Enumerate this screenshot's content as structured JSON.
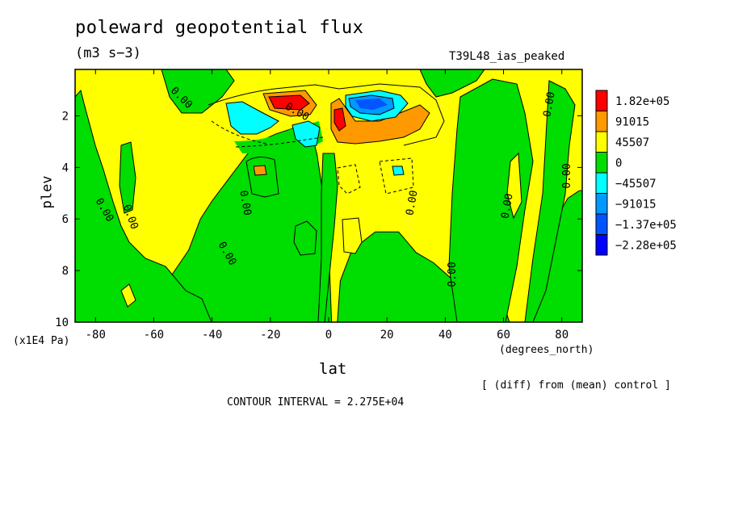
{
  "chart_data": {
    "type": "heatmap",
    "title": "poleward geopotential flux",
    "units": "(m3 s−3)",
    "run_label": "T39L48_ias_peaked",
    "xlabel": "lat",
    "x_units": "(degrees_north)",
    "ylabel": "plev",
    "y_units": "(x1E4 Pa)",
    "xlim": [
      -87,
      87
    ],
    "ylim": [
      10,
      0.2
    ],
    "x_ticks": [
      "-80",
      "-60",
      "-40",
      "-20",
      "0",
      "20",
      "40",
      "60",
      "80"
    ],
    "x_tick_values": [
      -80,
      -60,
      -40,
      -20,
      0,
      20,
      40,
      60,
      80
    ],
    "y_ticks": [
      "2",
      "4",
      "6",
      "8",
      "10"
    ],
    "y_tick_values": [
      2,
      4,
      6,
      8,
      10
    ],
    "contour_label": "0.00",
    "legend": [
      {
        "label": "1.82e+05",
        "color": "#ff0000"
      },
      {
        "label": "91015",
        "color": "#ff9900"
      },
      {
        "label": "45507",
        "color": "#ffff00"
      },
      {
        "label": "0",
        "color": "#00dd00"
      },
      {
        "label": "−45507",
        "color": "#00ffff"
      },
      {
        "label": "−91015",
        "color": "#0099ff"
      },
      {
        "label": "−1.37e+05",
        "color": "#0055ff"
      },
      {
        "label": "−2.28e+05",
        "color": "#0000ff"
      }
    ],
    "note": "[ (diff) from (mean) control ]",
    "contour_interval": "CONTOUR INTERVAL = 2.275E+04",
    "regions": [
      {
        "level": "0",
        "color": "#00dd00",
        "points": [
          [
            -87,
            10
          ],
          [
            -83,
            10
          ],
          [
            -83,
            9
          ],
          [
            -80,
            8.7
          ],
          [
            -78,
            9.6
          ],
          [
            -72,
            10
          ],
          [
            -66,
            10
          ],
          [
            -62,
            9.2
          ],
          [
            -58,
            8.5
          ],
          [
            -54,
            8.2
          ],
          [
            -48,
            7.2
          ],
          [
            -44,
            6
          ],
          [
            -40,
            5.3
          ],
          [
            -34,
            4.4
          ],
          [
            -28,
            3.5
          ],
          [
            -24,
            3.0
          ],
          [
            -18,
            2.7
          ],
          [
            -10,
            2.4
          ],
          [
            -6,
            2.6
          ],
          [
            -4,
            3.5
          ],
          [
            -2,
            5
          ],
          [
            0,
            7
          ],
          [
            1,
            10
          ],
          [
            -87,
            10
          ]
        ]
      },
      {
        "level": "0",
        "color": "#00dd00",
        "points": [
          [
            3,
            10
          ],
          [
            4,
            8.4
          ],
          [
            8,
            7.2
          ],
          [
            16,
            6.5
          ],
          [
            24,
            6.5
          ],
          [
            30,
            7.3
          ],
          [
            36,
            7.7
          ],
          [
            42,
            8.3
          ],
          [
            48,
            8.8
          ],
          [
            56,
            9
          ],
          [
            60,
            9.3
          ],
          [
            62,
            10
          ],
          [
            3,
            10
          ]
        ]
      },
      {
        "level": "0",
        "color": "#00dd00",
        "points": [
          [
            70,
            10
          ],
          [
            71,
            8.5
          ],
          [
            74,
            7.3
          ],
          [
            78,
            6
          ],
          [
            82,
            5.2
          ],
          [
            86,
            4.9
          ],
          [
            87,
            4.9
          ],
          [
            87,
            10
          ],
          [
            70,
            10
          ]
        ]
      }
    ]
  }
}
